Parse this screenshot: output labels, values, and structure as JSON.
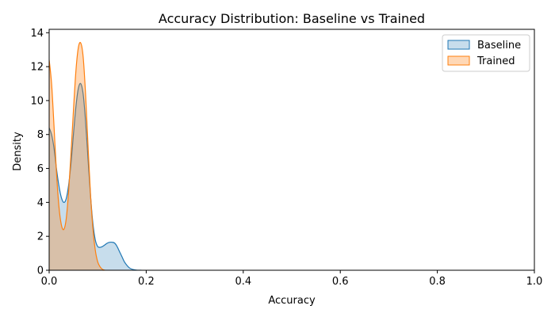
{
  "chart_data": {
    "type": "area",
    "title": "Accuracy Distribution: Baseline vs Trained",
    "xlabel": "Accuracy",
    "ylabel": "Density",
    "xlim": [
      0,
      1
    ],
    "ylim": [
      0,
      14.2
    ],
    "xticks": [
      0.0,
      0.2,
      0.4,
      0.6,
      0.8,
      1.0
    ],
    "xtick_labels": [
      "0.0",
      "0.2",
      "0.4",
      "0.6",
      "0.8",
      "1.0"
    ],
    "yticks": [
      0,
      2,
      4,
      6,
      8,
      10,
      12,
      14
    ],
    "ytick_labels": [
      "0",
      "2",
      "4",
      "6",
      "8",
      "10",
      "12",
      "14"
    ],
    "grid": false,
    "legend_position": "top-right",
    "series": [
      {
        "name": "Baseline",
        "line_color": "#1f77b4",
        "fill_color": "#1f77b4",
        "fill_opacity": 0.25,
        "x": [
          0.0,
          0.005,
          0.01,
          0.015,
          0.02,
          0.025,
          0.03,
          0.035,
          0.04,
          0.045,
          0.05,
          0.055,
          0.06,
          0.065,
          0.07,
          0.075,
          0.08,
          0.085,
          0.09,
          0.095,
          0.1,
          0.105,
          0.11,
          0.115,
          0.12,
          0.125,
          0.13,
          0.135,
          0.14,
          0.145,
          0.15,
          0.155,
          0.16,
          0.165,
          0.17,
          0.175,
          0.18,
          0.185,
          0.19
        ],
        "y": [
          8.4,
          8.0,
          7.2,
          6.0,
          5.0,
          4.3,
          4.0,
          4.2,
          5.0,
          6.3,
          8.0,
          9.6,
          10.7,
          11.0,
          10.4,
          8.8,
          6.6,
          4.5,
          2.8,
          1.8,
          1.4,
          1.35,
          1.4,
          1.5,
          1.6,
          1.65,
          1.65,
          1.6,
          1.4,
          1.1,
          0.8,
          0.5,
          0.3,
          0.15,
          0.07,
          0.03,
          0.01,
          0.0,
          0.0
        ]
      },
      {
        "name": "Trained",
        "line_color": "#ff7f0e",
        "fill_color": "#ff7f0e",
        "fill_opacity": 0.3,
        "x": [
          0.0,
          0.005,
          0.01,
          0.015,
          0.02,
          0.025,
          0.03,
          0.035,
          0.04,
          0.045,
          0.05,
          0.055,
          0.06,
          0.065,
          0.07,
          0.075,
          0.08,
          0.085,
          0.09,
          0.095,
          0.1,
          0.105,
          0.11,
          0.115
        ],
        "y": [
          12.4,
          11.0,
          8.5,
          5.8,
          3.8,
          2.7,
          2.4,
          3.0,
          4.6,
          6.9,
          9.4,
          11.7,
          13.1,
          13.4,
          12.6,
          10.4,
          7.4,
          4.6,
          2.5,
          1.2,
          0.5,
          0.2,
          0.05,
          0.0
        ]
      }
    ]
  }
}
